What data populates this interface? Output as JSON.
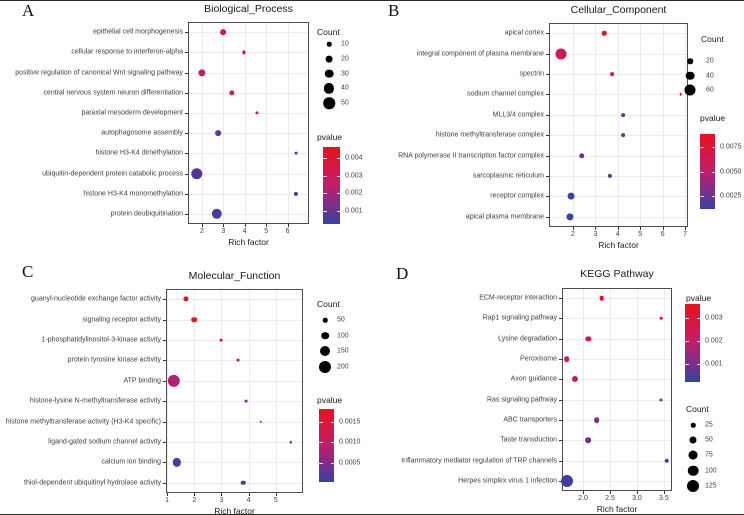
{
  "colors": {
    "gradient_low": "#3740A3",
    "gradient_mid": "#C01E6B",
    "gradient_high": "#E8121D",
    "bubble": "#000000",
    "grid": "#ebebeb",
    "panel_border": "#4d4d4d",
    "text": "#404040",
    "title": "#1a1a1a"
  },
  "chart_data": [
    {
      "type": "scatter",
      "panel_label": "A",
      "title": "Biological_Process",
      "xlabel": "Rich factor",
      "ylabel": "",
      "legend_position": "right",
      "x_range": [
        1.35,
        7.0
      ],
      "x_ticks": [
        2,
        3,
        4,
        5,
        6
      ],
      "x_tick_labels": [
        "2",
        "3",
        "4",
        "5",
        "6"
      ],
      "legend_count": {
        "title": "Count",
        "values": [
          10,
          20,
          30,
          40,
          50
        ]
      },
      "legend_pvalue": {
        "title": "pvalue",
        "tick_values": [
          0.004,
          0.003,
          0.002,
          0.001
        ],
        "tick_labels": [
          "0.004",
          "0.003",
          "0.002",
          "0.001"
        ],
        "range": [
          0.00025,
          0.00465
        ]
      },
      "points": [
        {
          "term": "epithelial cell morphogenesis",
          "rich_factor": 3.0,
          "count": 15,
          "pvalue": 0.004
        },
        {
          "term": "cellular response to interferon-alpha",
          "rich_factor": 3.95,
          "count": 6,
          "pvalue": 0.0042
        },
        {
          "term": "positive regulation of canonical Wnt signaling pathway",
          "rich_factor": 2.0,
          "count": 22,
          "pvalue": 0.0024
        },
        {
          "term": "central nervous system neuron differentiation",
          "rich_factor": 3.4,
          "count": 13,
          "pvalue": 0.0025
        },
        {
          "term": "paraxial mesoderm development",
          "rich_factor": 4.55,
          "count": 6,
          "pvalue": 0.0027
        },
        {
          "term": "autophagosome assembly",
          "rich_factor": 2.75,
          "count": 15,
          "pvalue": 0.0009
        },
        {
          "term": "histone H3-K4 dimethylation",
          "rich_factor": 6.4,
          "count": 5,
          "pvalue": 0.0006
        },
        {
          "term": "ubiquitin-dependent protein catabolic process",
          "rich_factor": 1.75,
          "count": 50,
          "pvalue": 0.0007
        },
        {
          "term": "histone H3-K4 monomethylation",
          "rich_factor": 6.4,
          "count": 9,
          "pvalue": 0.0007
        },
        {
          "term": "protein deubiquitination",
          "rich_factor": 2.7,
          "count": 42,
          "pvalue": 0.0006
        }
      ]
    },
    {
      "type": "scatter",
      "panel_label": "B",
      "title": "Cellular_Component",
      "xlabel": "Rich factor",
      "ylabel": "",
      "legend_position": "right",
      "x_range": [
        0.93,
        7.13
      ],
      "x_ticks": [
        2,
        3,
        4,
        5,
        6,
        7
      ],
      "x_tick_labels": [
        "2",
        "3",
        "4",
        "5",
        "6",
        "7"
      ],
      "legend_count": {
        "title": "Count",
        "values": [
          20,
          40,
          60
        ]
      },
      "legend_pvalue": {
        "title": "pvalue",
        "tick_values": [
          0.0075,
          0.005,
          0.0025
        ],
        "tick_labels": [
          "0.0075",
          "0.0050",
          "0.0025"
        ],
        "range": [
          0.0012,
          0.0088
        ]
      },
      "points": [
        {
          "term": "apical cortex",
          "rich_factor": 3.4,
          "count": 15,
          "pvalue": 0.008
        },
        {
          "term": "integral component of plasma membrane",
          "rich_factor": 1.45,
          "count": 60,
          "pvalue": 0.0062
        },
        {
          "term": "spectrin",
          "rich_factor": 3.75,
          "count": 12,
          "pvalue": 0.0058
        },
        {
          "term": "sodium channel complex",
          "rich_factor": 6.8,
          "count": 5,
          "pvalue": 0.0045
        },
        {
          "term": "MLL3/4 complex",
          "rich_factor": 4.25,
          "count": 12,
          "pvalue": 0.0032
        },
        {
          "term": "histone methyltransferase complex",
          "rich_factor": 4.25,
          "count": 12,
          "pvalue": 0.0032
        },
        {
          "term": "RNA polymerase II transcription factor complex",
          "rich_factor": 2.4,
          "count": 20,
          "pvalue": 0.0026
        },
        {
          "term": "sarcoplasmic reticulum",
          "rich_factor": 3.65,
          "count": 14,
          "pvalue": 0.0019
        },
        {
          "term": "receptor complex",
          "rich_factor": 1.9,
          "count": 28,
          "pvalue": 0.001
        },
        {
          "term": "apical plasma membrane",
          "rich_factor": 1.85,
          "count": 30,
          "pvalue": 0.0008
        }
      ]
    },
    {
      "type": "scatter",
      "panel_label": "C",
      "title": "Molecular_Function",
      "xlabel": "Rich factor",
      "ylabel": "",
      "legend_position": "right",
      "x_range": [
        0.96,
        6.0
      ],
      "x_ticks": [
        1,
        2,
        3,
        4,
        5
      ],
      "x_tick_labels": [
        "1",
        "2",
        "3",
        "4",
        "5"
      ],
      "legend_count": {
        "title": "Count",
        "values": [
          50,
          100,
          150,
          200
        ]
      },
      "legend_pvalue": {
        "title": "pvalue",
        "tick_values": [
          0.0015,
          0.001,
          0.0005
        ],
        "tick_labels": [
          "0.0015",
          "0.0010",
          "0.0005"
        ],
        "range": [
          5e-05,
          0.0018
        ]
      },
      "points": [
        {
          "term": "guanyl-nucleotide exchange factor activity",
          "rich_factor": 1.7,
          "count": 60,
          "pvalue": 0.00172
        },
        {
          "term": "signaling receptor activity",
          "rich_factor": 2.0,
          "count": 65,
          "pvalue": 0.00165
        },
        {
          "term": "1-phosphatidylinositol-3-kinase activity",
          "rich_factor": 3.0,
          "count": 30,
          "pvalue": 0.0015
        },
        {
          "term": "protein tyrosine kinase activity",
          "rich_factor": 3.6,
          "count": 30,
          "pvalue": 0.0014
        },
        {
          "term": "ATP binding",
          "rich_factor": 1.25,
          "count": 210,
          "pvalue": 0.00085
        },
        {
          "term": "histone-lysine N-methyltransferase activity",
          "rich_factor": 3.9,
          "count": 30,
          "pvalue": 0.00055
        },
        {
          "term": "histone methyltransferase activity (H3-K4 specific)",
          "rich_factor": 4.45,
          "count": 18,
          "pvalue": 0.0005
        },
        {
          "term": "ligand-gated sodium channel activity",
          "rich_factor": 5.55,
          "count": 8,
          "pvalue": 0.00015
        },
        {
          "term": "calcium ion binding",
          "rich_factor": 1.35,
          "count": 115,
          "pvalue": 0.00015
        },
        {
          "term": "thiol-dependent ubiquitinyl hydrolase activity",
          "rich_factor": 3.8,
          "count": 50,
          "pvalue": 0.0001
        }
      ]
    },
    {
      "type": "scatter",
      "panel_label": "D",
      "title": "KEGG Pathway",
      "xlabel": "Rich factor",
      "ylabel": "",
      "legend_position": "right",
      "x_range": [
        1.61,
        3.65
      ],
      "x_ticks": [
        2.0,
        2.5,
        3.0,
        3.5
      ],
      "x_tick_labels": [
        "2.0",
        "2.5",
        "3.0",
        "3.5"
      ],
      "legend_count": {
        "title": "Count",
        "values": [
          25,
          50,
          75,
          100,
          125
        ]
      },
      "legend_pvalue": {
        "title": "pvalue",
        "tick_values": [
          0.003,
          0.002,
          0.001
        ],
        "tick_labels": [
          "0.003",
          "0.002",
          "0.001"
        ],
        "range": [
          0.0002,
          0.0036
        ]
      },
      "points": [
        {
          "term": "ECM-receptor interaction",
          "rich_factor": 2.35,
          "count": 25,
          "pvalue": 0.0034
        },
        {
          "term": "Rap1 signaling pathway",
          "rich_factor": 3.45,
          "count": 8,
          "pvalue": 0.0033
        },
        {
          "term": "Lysine degradation",
          "rich_factor": 2.1,
          "count": 32,
          "pvalue": 0.0028
        },
        {
          "term": "Peroxisome",
          "rich_factor": 1.7,
          "count": 35,
          "pvalue": 0.0026
        },
        {
          "term": "Axon guidance",
          "rich_factor": 1.85,
          "count": 40,
          "pvalue": 0.0023
        },
        {
          "term": "Ras signaling pathway",
          "rich_factor": 3.45,
          "count": 15,
          "pvalue": 0.0012
        },
        {
          "term": "ABC transporters",
          "rich_factor": 2.25,
          "count": 35,
          "pvalue": 0.0011
        },
        {
          "term": "Taste transduction",
          "rich_factor": 2.1,
          "count": 35,
          "pvalue": 0.0008
        },
        {
          "term": "Inflammatory mediator regulation of TRP channels",
          "rich_factor": 3.55,
          "count": 25,
          "pvalue": 0.0005
        },
        {
          "term": "Herpes simplex virus 1 infection",
          "rich_factor": 1.7,
          "count": 125,
          "pvalue": 0.0003
        }
      ]
    }
  ]
}
